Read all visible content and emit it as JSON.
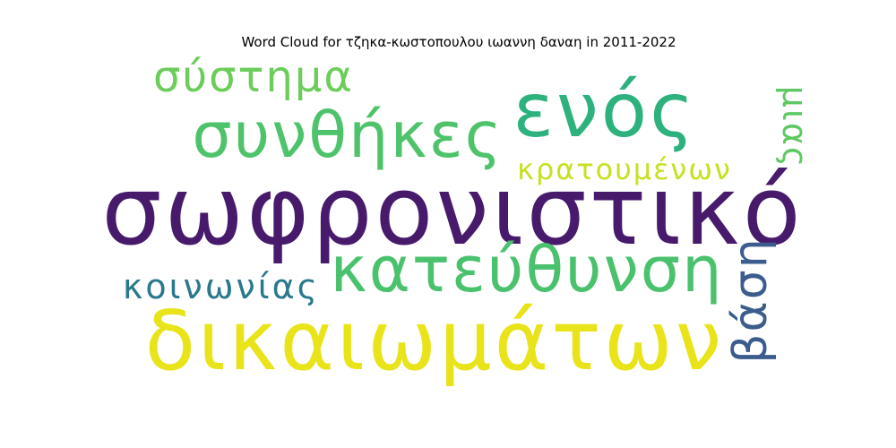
{
  "chart_data": {
    "type": "wordcloud",
    "title": "Word Cloud for τζηκα-κωστοπουλου ιωαννη δαναη in 2011-2022",
    "words": [
      {
        "text": "σωφρονιστικό",
        "weight": 1.0,
        "color": "#481a6c",
        "orientation": "horizontal"
      },
      {
        "text": "δικαιωμάτων",
        "weight": 0.8,
        "color": "#e8e419",
        "orientation": "horizontal"
      },
      {
        "text": "ενός",
        "weight": 0.72,
        "color": "#2db27d",
        "orientation": "horizontal"
      },
      {
        "text": "συνθήκες",
        "weight": 0.62,
        "color": "#4ec36b",
        "orientation": "horizontal"
      },
      {
        "text": "κατεύθυνση",
        "weight": 0.62,
        "color": "#4ac16d",
        "orientation": "horizontal"
      },
      {
        "text": "σύστημα",
        "weight": 0.45,
        "color": "#6ccd5a",
        "orientation": "horizontal"
      },
      {
        "text": "βάση",
        "weight": 0.44,
        "color": "#3b5c8c",
        "orientation": "vertical"
      },
      {
        "text": "κοινωνίας",
        "weight": 0.34,
        "color": "#2a788e",
        "orientation": "horizontal"
      },
      {
        "text": "κρατουμένων",
        "weight": 0.3,
        "color": "#c8e020",
        "orientation": "horizontal"
      },
      {
        "text": "μιας",
        "weight": 0.3,
        "color": "#5ec962",
        "orientation": "vertical"
      }
    ]
  }
}
